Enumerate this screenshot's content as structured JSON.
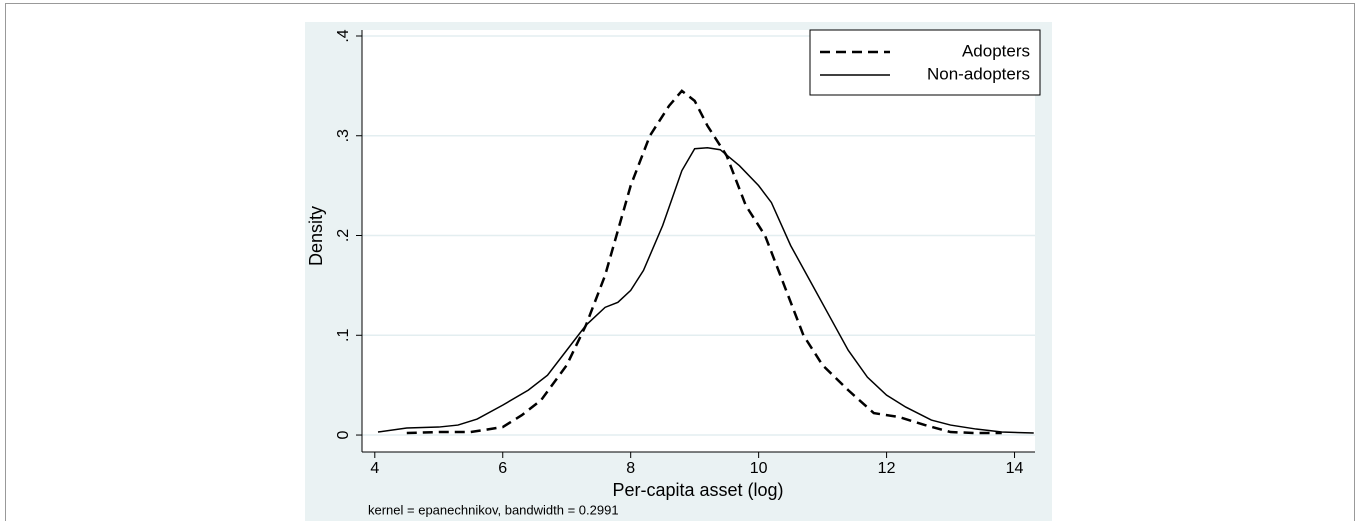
{
  "chart_data": {
    "type": "line",
    "x_label": "Per-capita asset (log)",
    "y_label": "Density",
    "note": "kernel = epanechnikov, bandwidth = 0.2991",
    "xlim": [
      3.8,
      14.32
    ],
    "ylim": [
      -0.017,
      0.406
    ],
    "xticks": [
      4,
      6,
      8,
      10,
      12,
      14
    ],
    "yticks": [
      0,
      {
        "value": 0.1,
        "label": ".1"
      },
      {
        "value": 0.2,
        "label": ".2"
      },
      {
        "value": 0.3,
        "label": ".3"
      },
      {
        "value": 0.4,
        "label": ".4"
      }
    ],
    "grid": true,
    "legend": "top-right",
    "series": [
      {
        "name": "Adopters",
        "color": "#000000",
        "dash": true,
        "x": [
          4.5,
          5.0,
          5.5,
          6.0,
          6.3,
          6.6,
          7.0,
          7.3,
          7.6,
          8.0,
          8.3,
          8.6,
          8.8,
          9.0,
          9.2,
          9.5,
          9.8,
          10.1,
          10.4,
          10.7,
          11.0,
          11.4,
          11.8,
          12.2,
          12.6,
          13.0,
          13.4,
          13.8
        ],
        "values": [
          0.002,
          0.003,
          0.003,
          0.008,
          0.02,
          0.035,
          0.07,
          0.11,
          0.16,
          0.25,
          0.3,
          0.33,
          0.345,
          0.335,
          0.31,
          0.28,
          0.23,
          0.2,
          0.15,
          0.1,
          0.07,
          0.045,
          0.022,
          0.018,
          0.01,
          0.003,
          0.002,
          0.002
        ]
      },
      {
        "name": "Non-adopters",
        "color": "#000000",
        "dash": false,
        "x": [
          4.05,
          4.5,
          5.0,
          5.3,
          5.6,
          6.0,
          6.4,
          6.7,
          7.0,
          7.3,
          7.6,
          7.8,
          8.0,
          8.2,
          8.5,
          8.8,
          9.0,
          9.2,
          9.4,
          9.7,
          10.0,
          10.2,
          10.5,
          10.8,
          11.1,
          11.4,
          11.7,
          12.0,
          12.3,
          12.7,
          13.0,
          13.4,
          13.8,
          14.3
        ],
        "values": [
          0.003,
          0.007,
          0.008,
          0.01,
          0.016,
          0.03,
          0.045,
          0.06,
          0.085,
          0.11,
          0.128,
          0.133,
          0.145,
          0.165,
          0.21,
          0.265,
          0.287,
          0.288,
          0.286,
          0.27,
          0.25,
          0.233,
          0.19,
          0.155,
          0.12,
          0.085,
          0.058,
          0.04,
          0.028,
          0.015,
          0.01,
          0.006,
          0.003,
          0.002
        ]
      }
    ]
  }
}
